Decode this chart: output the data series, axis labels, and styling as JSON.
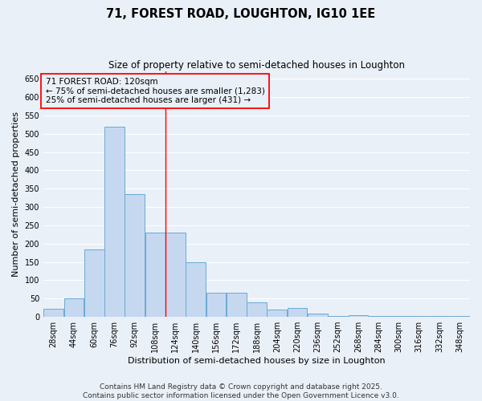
{
  "title": "71, FOREST ROAD, LOUGHTON, IG10 1EE",
  "subtitle": "Size of property relative to semi-detached houses in Loughton",
  "xlabel": "Distribution of semi-detached houses by size in Loughton",
  "ylabel": "Number of semi-detached properties",
  "footer_line1": "Contains HM Land Registry data © Crown copyright and database right 2025.",
  "footer_line2": "Contains public sector information licensed under the Open Government Licence v3.0.",
  "bins": [
    28,
    44,
    60,
    76,
    92,
    108,
    124,
    140,
    156,
    172,
    188,
    204,
    220,
    236,
    252,
    268,
    284,
    300,
    316,
    332,
    348
  ],
  "bin_labels": [
    "28sqm",
    "44sqm",
    "60sqm",
    "76sqm",
    "92sqm",
    "108sqm",
    "124sqm",
    "140sqm",
    "156sqm",
    "172sqm",
    "188sqm",
    "204sqm",
    "220sqm",
    "236sqm",
    "252sqm",
    "268sqm",
    "284sqm",
    "300sqm",
    "316sqm",
    "332sqm",
    "348sqm"
  ],
  "values": [
    22,
    50,
    185,
    520,
    335,
    230,
    230,
    150,
    65,
    65,
    40,
    20,
    25,
    10,
    2,
    5,
    2,
    2,
    2,
    2,
    2
  ],
  "bar_color": "#c5d8f0",
  "bar_edge_color": "#6aaad4",
  "vline_x": 124,
  "vline_color": "red",
  "annotation_text": "71 FOREST ROAD: 120sqm\n← 75% of semi-detached houses are smaller (1,283)\n25% of semi-detached houses are larger (431) →",
  "annotation_box_color": "red",
  "ylim": [
    0,
    670
  ],
  "yticks": [
    0,
    50,
    100,
    150,
    200,
    250,
    300,
    350,
    400,
    450,
    500,
    550,
    600,
    650
  ],
  "background_color": "#eaf0f8",
  "grid_color": "#ffffff",
  "title_fontsize": 10.5,
  "subtitle_fontsize": 8.5,
  "label_fontsize": 8,
  "tick_fontsize": 7,
  "footer_fontsize": 6.5,
  "annotation_fontsize": 7.5
}
